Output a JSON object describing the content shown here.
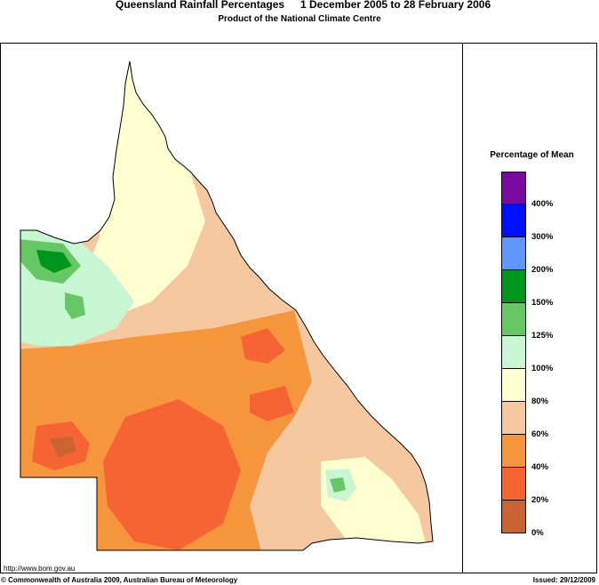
{
  "header": {
    "title": "Queensland Rainfall Percentages",
    "period": "1 December 2005 to 28 February 2006",
    "subtitle": "Product of the National Climate Centre"
  },
  "legend": {
    "title": "Percentage of Mean",
    "classes": [
      {
        "color": "#7a0aa0"
      },
      {
        "color": "#0010ff"
      },
      {
        "color": "#5f96ff"
      },
      {
        "color": "#00961e"
      },
      {
        "color": "#66c864"
      },
      {
        "color": "#c8f5d2"
      },
      {
        "color": "#ffffd2"
      },
      {
        "color": "#f5c8a0"
      },
      {
        "color": "#f5963c"
      },
      {
        "color": "#f56432"
      },
      {
        "color": "#c86432"
      }
    ],
    "labels": [
      "400%",
      "300%",
      "200%",
      "150%",
      "125%",
      "100%",
      "80%",
      "60%",
      "40%",
      "20%",
      "0%"
    ]
  },
  "footer": {
    "url": "http://www.bom.gov.au",
    "copyright": "© Commonwealth of Australia 2009, Australian Bureau of Meteorology",
    "issued": "Issued: 29/12/2009"
  }
}
